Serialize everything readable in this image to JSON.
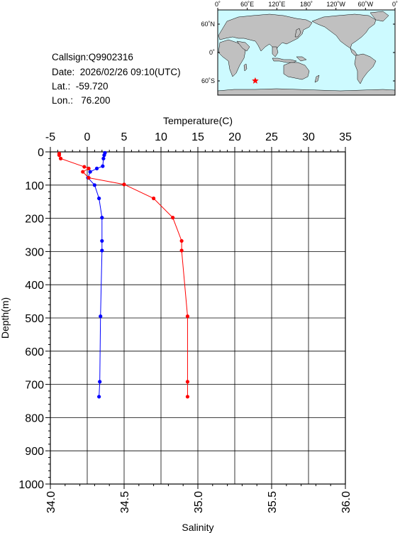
{
  "info": {
    "callsign": "Callsign:Q9902316",
    "date": "Date:  2026/02/26 09:10(UTC)",
    "lat": "Lat.:  -59.720",
    "lon": "Lon.:   76.200"
  },
  "map": {
    "lon_labels": [
      "0˚",
      "60˚E",
      "120˚E",
      "180˚",
      "120˚W",
      "60˚W",
      "0˚"
    ],
    "lat_labels": [
      "60˚N",
      "0˚",
      "60˚S"
    ],
    "ocean_color": "#cdfaff",
    "land_color": "#c0c0c0",
    "marker": {
      "lon": 76.2,
      "lat": -59.72,
      "color": "#ff0000",
      "symbol": "star"
    }
  },
  "chart_data": {
    "type": "line",
    "x_top_label": "Temperature(C)",
    "x_top_ticks": [
      "-5",
      "0",
      "5",
      "10",
      "15",
      "20",
      "25",
      "30",
      "35"
    ],
    "x_top_lim": [
      -5,
      35
    ],
    "x_bottom_label": "Salinity",
    "x_bottom_ticks": [
      "34.0",
      "34.5",
      "35.0",
      "35.5",
      "36.0"
    ],
    "x_bottom_lim": [
      34.0,
      36.0
    ],
    "y_label": "Depth(m)",
    "y_ticks": [
      "0",
      "100",
      "200",
      "300",
      "400",
      "500",
      "600",
      "700",
      "800",
      "900",
      "1000"
    ],
    "y_lim": [
      0,
      1000
    ],
    "y_inverted": true,
    "grid": true,
    "series": [
      {
        "axis": "temperature",
        "color": "#0000ff",
        "points": [
          [
            2.4,
            3
          ],
          [
            2.3,
            10
          ],
          [
            2.2,
            20
          ],
          [
            2.1,
            43
          ],
          [
            1.3,
            50
          ],
          [
            0.4,
            60
          ],
          [
            0.1,
            78
          ],
          [
            1.0,
            100
          ],
          [
            1.6,
            140
          ],
          [
            2.0,
            198
          ],
          [
            2.0,
            268
          ],
          [
            2.0,
            297
          ],
          [
            1.8,
            495
          ],
          [
            1.7,
            692
          ],
          [
            1.6,
            737
          ]
        ]
      },
      {
        "axis": "salinity",
        "color": "#ff0000",
        "points": [
          [
            34.06,
            5
          ],
          [
            34.06,
            10
          ],
          [
            34.07,
            20
          ],
          [
            34.23,
            45
          ],
          [
            34.26,
            50
          ],
          [
            34.22,
            60
          ],
          [
            34.26,
            78
          ],
          [
            34.5,
            98
          ],
          [
            34.7,
            140
          ],
          [
            34.83,
            198
          ],
          [
            34.89,
            268
          ],
          [
            34.89,
            297
          ],
          [
            34.93,
            495
          ],
          [
            34.93,
            692
          ],
          [
            34.93,
            737
          ]
        ]
      }
    ]
  }
}
